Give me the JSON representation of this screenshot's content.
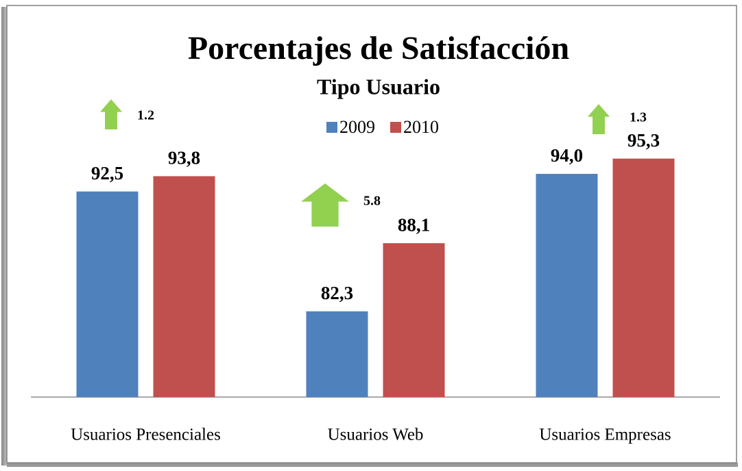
{
  "chart_data": {
    "type": "bar",
    "title": "Porcentajes de Satisfacción",
    "subtitle": "Tipo Usuario",
    "categories": [
      "Usuarios Presenciales",
      "Usuarios Web",
      "Usuarios Empresas"
    ],
    "series": [
      {
        "name": "2009",
        "color": "#4f81bd",
        "values": [
          92.5,
          82.3,
          94.0
        ],
        "value_labels": [
          "92,5",
          "82,3",
          "94,0"
        ]
      },
      {
        "name": "2010",
        "color": "#c0504d",
        "values": [
          93.8,
          88.1,
          95.3
        ],
        "value_labels": [
          "93,8",
          "88,1",
          "95,3"
        ]
      }
    ],
    "annotations": [
      "1.2",
      "5.8",
      "1.3"
    ],
    "ylim": [
      75,
      100
    ],
    "grid": false
  }
}
